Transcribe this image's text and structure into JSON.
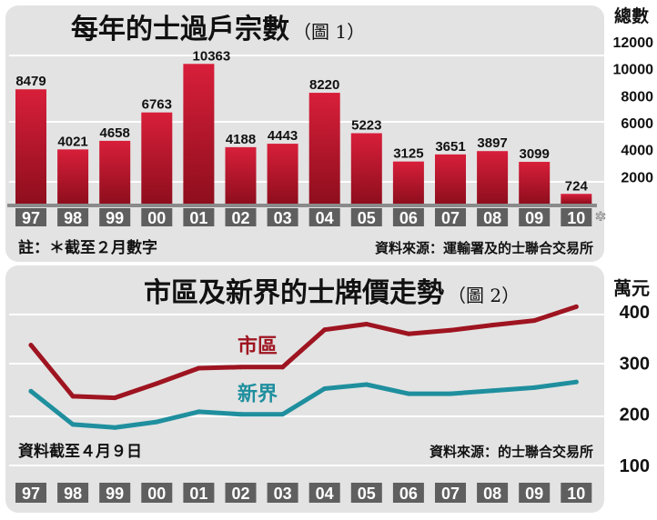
{
  "chart_data": [
    {
      "type": "bar",
      "title": "每年的士過戶宗數",
      "figure_label": "（圖 1）",
      "ylabel": "總數",
      "ylim": [
        0,
        12000
      ],
      "yticks": [
        "2000",
        "4000",
        "6000",
        "8000",
        "10000",
        "12000"
      ],
      "categories": [
        "97",
        "98",
        "99",
        "00",
        "01",
        "02",
        "03",
        "04",
        "05",
        "06",
        "07",
        "08",
        "09",
        "10"
      ],
      "values": [
        8479,
        4021,
        4658,
        6763,
        10363,
        4188,
        4443,
        8220,
        5223,
        3125,
        3651,
        3897,
        3099,
        724
      ],
      "value_labels": [
        "8479",
        "4021",
        "4658",
        "6763",
        "10363",
        "4188",
        "4443",
        "8220",
        "5223",
        "3125",
        "3651",
        "3897",
        "3099",
        "724"
      ],
      "asterisk": "*",
      "footnote": "註：＊截至２月數字",
      "source": "資料來源：運輸署及的士聯合交易所",
      "colors": {
        "bar": "#c0182e",
        "background": "#e3e3e3",
        "tick_box": "#5f5f5f"
      }
    },
    {
      "type": "line",
      "title": "市區及新界的士牌價走勢",
      "figure_label": "（圖 2）",
      "ylabel": "萬元",
      "ylim": [
        100,
        400
      ],
      "yticks": [
        "100",
        "200",
        "300",
        "400"
      ],
      "categories": [
        "97",
        "98",
        "99",
        "00",
        "01",
        "02",
        "03",
        "04",
        "05",
        "06",
        "07",
        "08",
        "09",
        "10"
      ],
      "series": [
        {
          "name": "市區",
          "color": "#9e1420",
          "values": [
            335,
            235,
            232,
            260,
            290,
            292,
            292,
            365,
            376,
            357,
            364,
            374,
            383,
            410
          ]
        },
        {
          "name": "新界",
          "color": "#1f8f9e",
          "values": [
            245,
            180,
            174,
            185,
            205,
            200,
            200,
            250,
            258,
            240,
            240,
            246,
            252,
            263
          ]
        }
      ],
      "footnote": "資料截至４月９日",
      "source": "資料來源：的士聯合交易所",
      "colors": {
        "background": "#e3e3e3",
        "tick_box": "#5f5f5f"
      }
    }
  ]
}
